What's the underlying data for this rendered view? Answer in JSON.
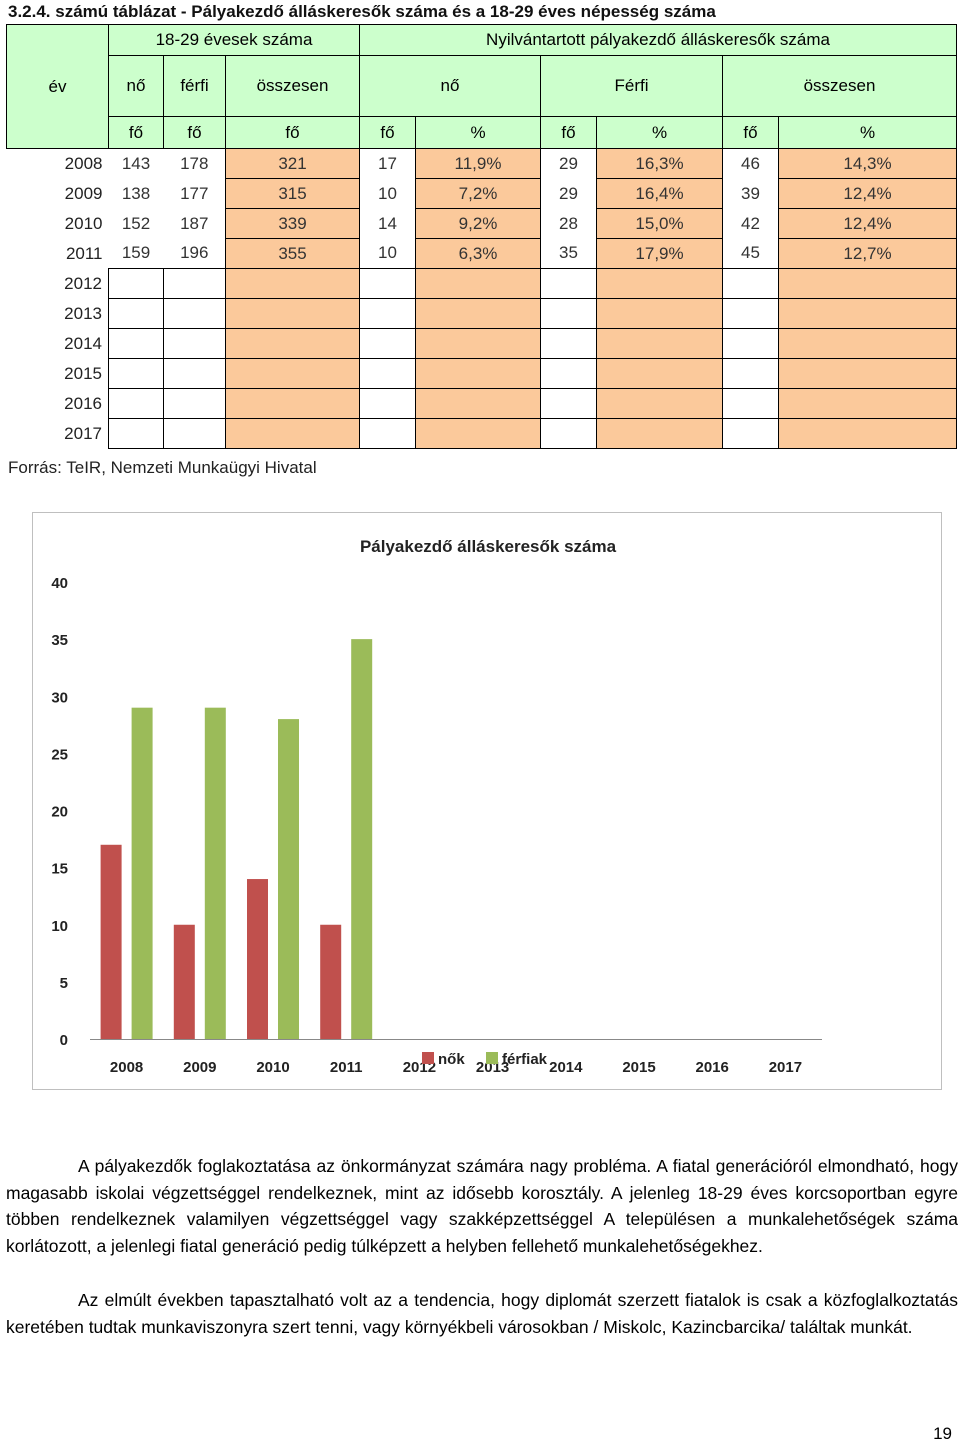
{
  "title": "3.2.4. számú táblázat - Pályakezdő álláskeresők száma és a 18-29 éves népesség száma",
  "table": {
    "year_header": "év",
    "group_18_29": "18-29 évesek száma",
    "group_registered": "Nyilvántartott pályakezdő álláskeresők száma",
    "sub_headers": [
      "nő",
      "férfi",
      "összesen",
      "nő",
      "Férfi",
      "összesen"
    ],
    "units": [
      "fő",
      "fő",
      "fő",
      "fő",
      "%",
      "fő",
      "%",
      "fő",
      "%"
    ],
    "rows": [
      {
        "year": "2008",
        "cells": [
          "143",
          "178",
          "321",
          "17",
          "11,9%",
          "29",
          "16,3%",
          "46",
          "14,3%"
        ]
      },
      {
        "year": "2009",
        "cells": [
          "138",
          "177",
          "315",
          "10",
          "7,2%",
          "29",
          "16,4%",
          "39",
          "12,4%"
        ]
      },
      {
        "year": "2010",
        "cells": [
          "152",
          "187",
          "339",
          "14",
          "9,2%",
          "28",
          "15,0%",
          "42",
          "12,4%"
        ]
      },
      {
        "year": "2011",
        "cells": [
          "159",
          "196",
          "355",
          "10",
          "6,3%",
          "35",
          "17,9%",
          "45",
          "12,7%"
        ]
      },
      {
        "year": "2012",
        "cells": [
          "",
          "",
          "",
          "",
          "",
          "",
          "",
          "",
          ""
        ]
      },
      {
        "year": "2013",
        "cells": [
          "",
          "",
          "",
          "",
          "",
          "",
          "",
          "",
          ""
        ]
      },
      {
        "year": "2014",
        "cells": [
          "",
          "",
          "",
          "",
          "",
          "",
          "",
          "",
          ""
        ]
      },
      {
        "year": "2015",
        "cells": [
          "",
          "",
          "",
          "",
          "",
          "",
          "",
          "",
          ""
        ]
      },
      {
        "year": "2016",
        "cells": [
          "",
          "",
          "",
          "",
          "",
          "",
          "",
          "",
          ""
        ]
      },
      {
        "year": "2017",
        "cells": [
          "",
          "",
          "",
          "",
          "",
          "",
          "",
          "",
          ""
        ]
      }
    ]
  },
  "source": "Forrás: TeIR, Nemzeti Munkaügyi Hivatal",
  "chart_data": {
    "type": "bar",
    "title": "Pályakezdő álláskeresők száma",
    "categories": [
      "2008",
      "2009",
      "2010",
      "2011",
      "2012",
      "2013",
      "2014",
      "2015",
      "2016",
      "2017"
    ],
    "series": [
      {
        "name": "nők",
        "color": "#c0504d",
        "values": [
          17,
          10,
          14,
          10,
          null,
          null,
          null,
          null,
          null,
          null
        ]
      },
      {
        "name": "férfiak",
        "color": "#9bbb59",
        "values": [
          29,
          29,
          28,
          35,
          null,
          null,
          null,
          null,
          null,
          null
        ]
      }
    ],
    "ylim": [
      0,
      40
    ],
    "yticks": [
      0,
      5,
      10,
      15,
      20,
      25,
      30,
      35,
      40
    ],
    "legend": "bottom",
    "grid": false
  },
  "paragraphs": [
    "A pályakezdők foglakoztatása az önkormányzat számára nagy probléma. A fiatal generációról elmondható, hogy magasabb iskolai végzettséggel rendelkeznek, mint az idősebb korosztály. A jelenleg 18-29 éves korcsoportban egyre többen rendelkeznek valamilyen végzettséggel vagy szakképzettséggel A településen a munkalehetőségek száma korlátozott, a jelenlegi fiatal generáció pedig túlképzett a helyben fellehető munkalehetőségekhez.",
    "Az elmúlt években tapasztalható volt az a tendencia, hogy diplomát szerzett fiatalok is csak a közfoglalkoztatás keretében tudtak munkaviszonyra szert tenni, vagy környékbeli városokban / Miskolc, Kazincbarcika/ találtak munkát."
  ],
  "page_number": "19"
}
